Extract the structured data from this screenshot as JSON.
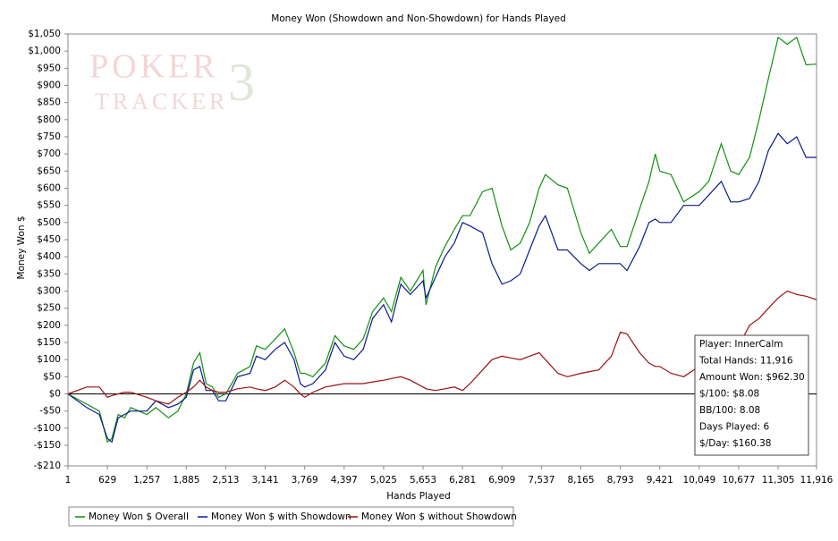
{
  "chart_data": {
    "type": "line",
    "title": "Money Won (Showdown and Non-Showdown) for Hands Played",
    "xlabel": "Hands Played",
    "ylabel": "Money Won $",
    "watermark": [
      "POKER",
      "TRACKER",
      "3"
    ],
    "x": [
      1,
      300,
      500,
      629,
      700,
      800,
      900,
      1000,
      1257,
      1400,
      1600,
      1750,
      1885,
      2000,
      2100,
      2200,
      2300,
      2400,
      2513,
      2700,
      2900,
      3000,
      3141,
      3300,
      3450,
      3600,
      3700,
      3769,
      3900,
      4100,
      4250,
      4397,
      4550,
      4700,
      4850,
      5025,
      5150,
      5300,
      5450,
      5653,
      5700,
      5850,
      6000,
      6150,
      6281,
      6400,
      6600,
      6750,
      6909,
      7050,
      7200,
      7350,
      7500,
      7600,
      7800,
      7950,
      8165,
      8300,
      8450,
      8650,
      8793,
      8900,
      9100,
      9250,
      9350,
      9421,
      9600,
      9800,
      10049,
      10200,
      10400,
      10550,
      10677,
      10850,
      11000,
      11150,
      11305,
      11450,
      11600,
      11750,
      11916
    ],
    "series": [
      {
        "name": "Money Won $ Overall",
        "color": "#109010",
        "values": [
          0,
          -30,
          -50,
          -140,
          -130,
          -60,
          -70,
          -40,
          -60,
          -40,
          -70,
          -50,
          0,
          90,
          120,
          30,
          20,
          -10,
          0,
          60,
          80,
          140,
          130,
          160,
          190,
          120,
          60,
          60,
          50,
          90,
          170,
          140,
          130,
          160,
          240,
          280,
          240,
          340,
          300,
          360,
          260,
          370,
          430,
          480,
          520,
          520,
          590,
          600,
          490,
          420,
          440,
          500,
          600,
          640,
          610,
          600,
          470,
          410,
          440,
          480,
          430,
          430,
          540,
          620,
          700,
          650,
          640,
          560,
          590,
          620,
          730,
          650,
          640,
          690,
          800,
          920,
          1040,
          1020,
          1040,
          960,
          962
        ]
      },
      {
        "name": "Money Won $ with Showdown",
        "color": "#0a1a8c",
        "values": [
          0,
          -40,
          -60,
          -130,
          -140,
          -70,
          -60,
          -50,
          -50,
          -20,
          -40,
          -30,
          -10,
          70,
          80,
          10,
          10,
          -20,
          -20,
          50,
          60,
          110,
          100,
          130,
          150,
          100,
          30,
          20,
          30,
          70,
          150,
          110,
          100,
          130,
          220,
          260,
          210,
          320,
          290,
          330,
          280,
          340,
          400,
          440,
          500,
          490,
          470,
          380,
          320,
          330,
          350,
          420,
          490,
          520,
          420,
          420,
          380,
          360,
          380,
          380,
          380,
          360,
          430,
          500,
          510,
          500,
          500,
          550,
          550,
          580,
          620,
          560,
          560,
          570,
          620,
          710,
          760,
          730,
          750,
          690,
          690
        ]
      },
      {
        "name": "Money Won $ without Showdown",
        "color": "#9a1010",
        "values": [
          0,
          20,
          20,
          -10,
          -5,
          0,
          5,
          5,
          -10,
          -20,
          -30,
          -10,
          5,
          20,
          40,
          20,
          10,
          5,
          5,
          15,
          20,
          15,
          10,
          20,
          40,
          20,
          0,
          -10,
          5,
          20,
          25,
          30,
          30,
          30,
          35,
          40,
          45,
          50,
          40,
          20,
          15,
          10,
          15,
          20,
          10,
          30,
          70,
          100,
          110,
          105,
          100,
          110,
          120,
          100,
          60,
          50,
          60,
          65,
          70,
          110,
          180,
          175,
          120,
          90,
          80,
          80,
          60,
          50,
          80,
          100,
          105,
          100,
          140,
          200,
          220,
          250,
          280,
          300,
          290,
          285,
          275
        ]
      }
    ],
    "xlim": [
      1,
      11916
    ],
    "xticks": [
      1,
      629,
      {
        "value": 1257,
        "label": "1,257"
      },
      {
        "value": 1885,
        "label": "1,885"
      },
      {
        "value": 2513,
        "label": "2,513"
      },
      {
        "value": 3141,
        "label": "3,141"
      },
      {
        "value": 3769,
        "label": "3,769"
      },
      {
        "value": 4397,
        "label": "4,397"
      },
      {
        "value": 5025,
        "label": "5,025"
      },
      {
        "value": 5653,
        "label": "5,653"
      },
      {
        "value": 6281,
        "label": "6,281"
      },
      {
        "value": 6909,
        "label": "6,909"
      },
      {
        "value": 7537,
        "label": "7,537"
      },
      {
        "value": 8165,
        "label": "8,165"
      },
      {
        "value": 8793,
        "label": "8,793"
      },
      {
        "value": 9421,
        "label": "9,421"
      },
      {
        "value": 10049,
        "label": "10,049"
      },
      {
        "value": 10677,
        "label": "10,677"
      },
      {
        "value": 11305,
        "label": "11,305"
      },
      {
        "value": 11916,
        "label": "11,916"
      }
    ],
    "ylim": [
      -210,
      1050
    ],
    "yticks": [
      {
        "value": -210,
        "label": "-$210"
      },
      {
        "value": -150,
        "label": "-$150"
      },
      {
        "value": -100,
        "label": "-$100"
      },
      {
        "value": -50,
        "label": "-$50"
      },
      {
        "value": 0,
        "label": "$0"
      },
      {
        "value": 50,
        "label": "$50"
      },
      {
        "value": 100,
        "label": "$100"
      },
      {
        "value": 150,
        "label": "$150"
      },
      {
        "value": 200,
        "label": "$200"
      },
      {
        "value": 250,
        "label": "$250"
      },
      {
        "value": 300,
        "label": "$300"
      },
      {
        "value": 350,
        "label": "$350"
      },
      {
        "value": 400,
        "label": "$400"
      },
      {
        "value": 450,
        "label": "$450"
      },
      {
        "value": 500,
        "label": "$500"
      },
      {
        "value": 550,
        "label": "$550"
      },
      {
        "value": 600,
        "label": "$600"
      },
      {
        "value": 650,
        "label": "$650"
      },
      {
        "value": 700,
        "label": "$700"
      },
      {
        "value": 750,
        "label": "$750"
      },
      {
        "value": 800,
        "label": "$800"
      },
      {
        "value": 850,
        "label": "$850"
      },
      {
        "value": 900,
        "label": "$900"
      },
      {
        "value": 950,
        "label": "$950"
      },
      {
        "value": 1000,
        "label": "$1,000"
      },
      {
        "value": 1050,
        "label": "$1,050"
      }
    ],
    "zero_line": 0,
    "grid": false,
    "legend": "bottom-left",
    "info_box": [
      "Player: InnerCalm",
      "Total Hands: 11,916",
      "Amount Won: $962.30",
      "$/100: $8.08",
      "BB/100: 8.08",
      "Days Played: 6",
      "$/Day: $160.38"
    ]
  }
}
